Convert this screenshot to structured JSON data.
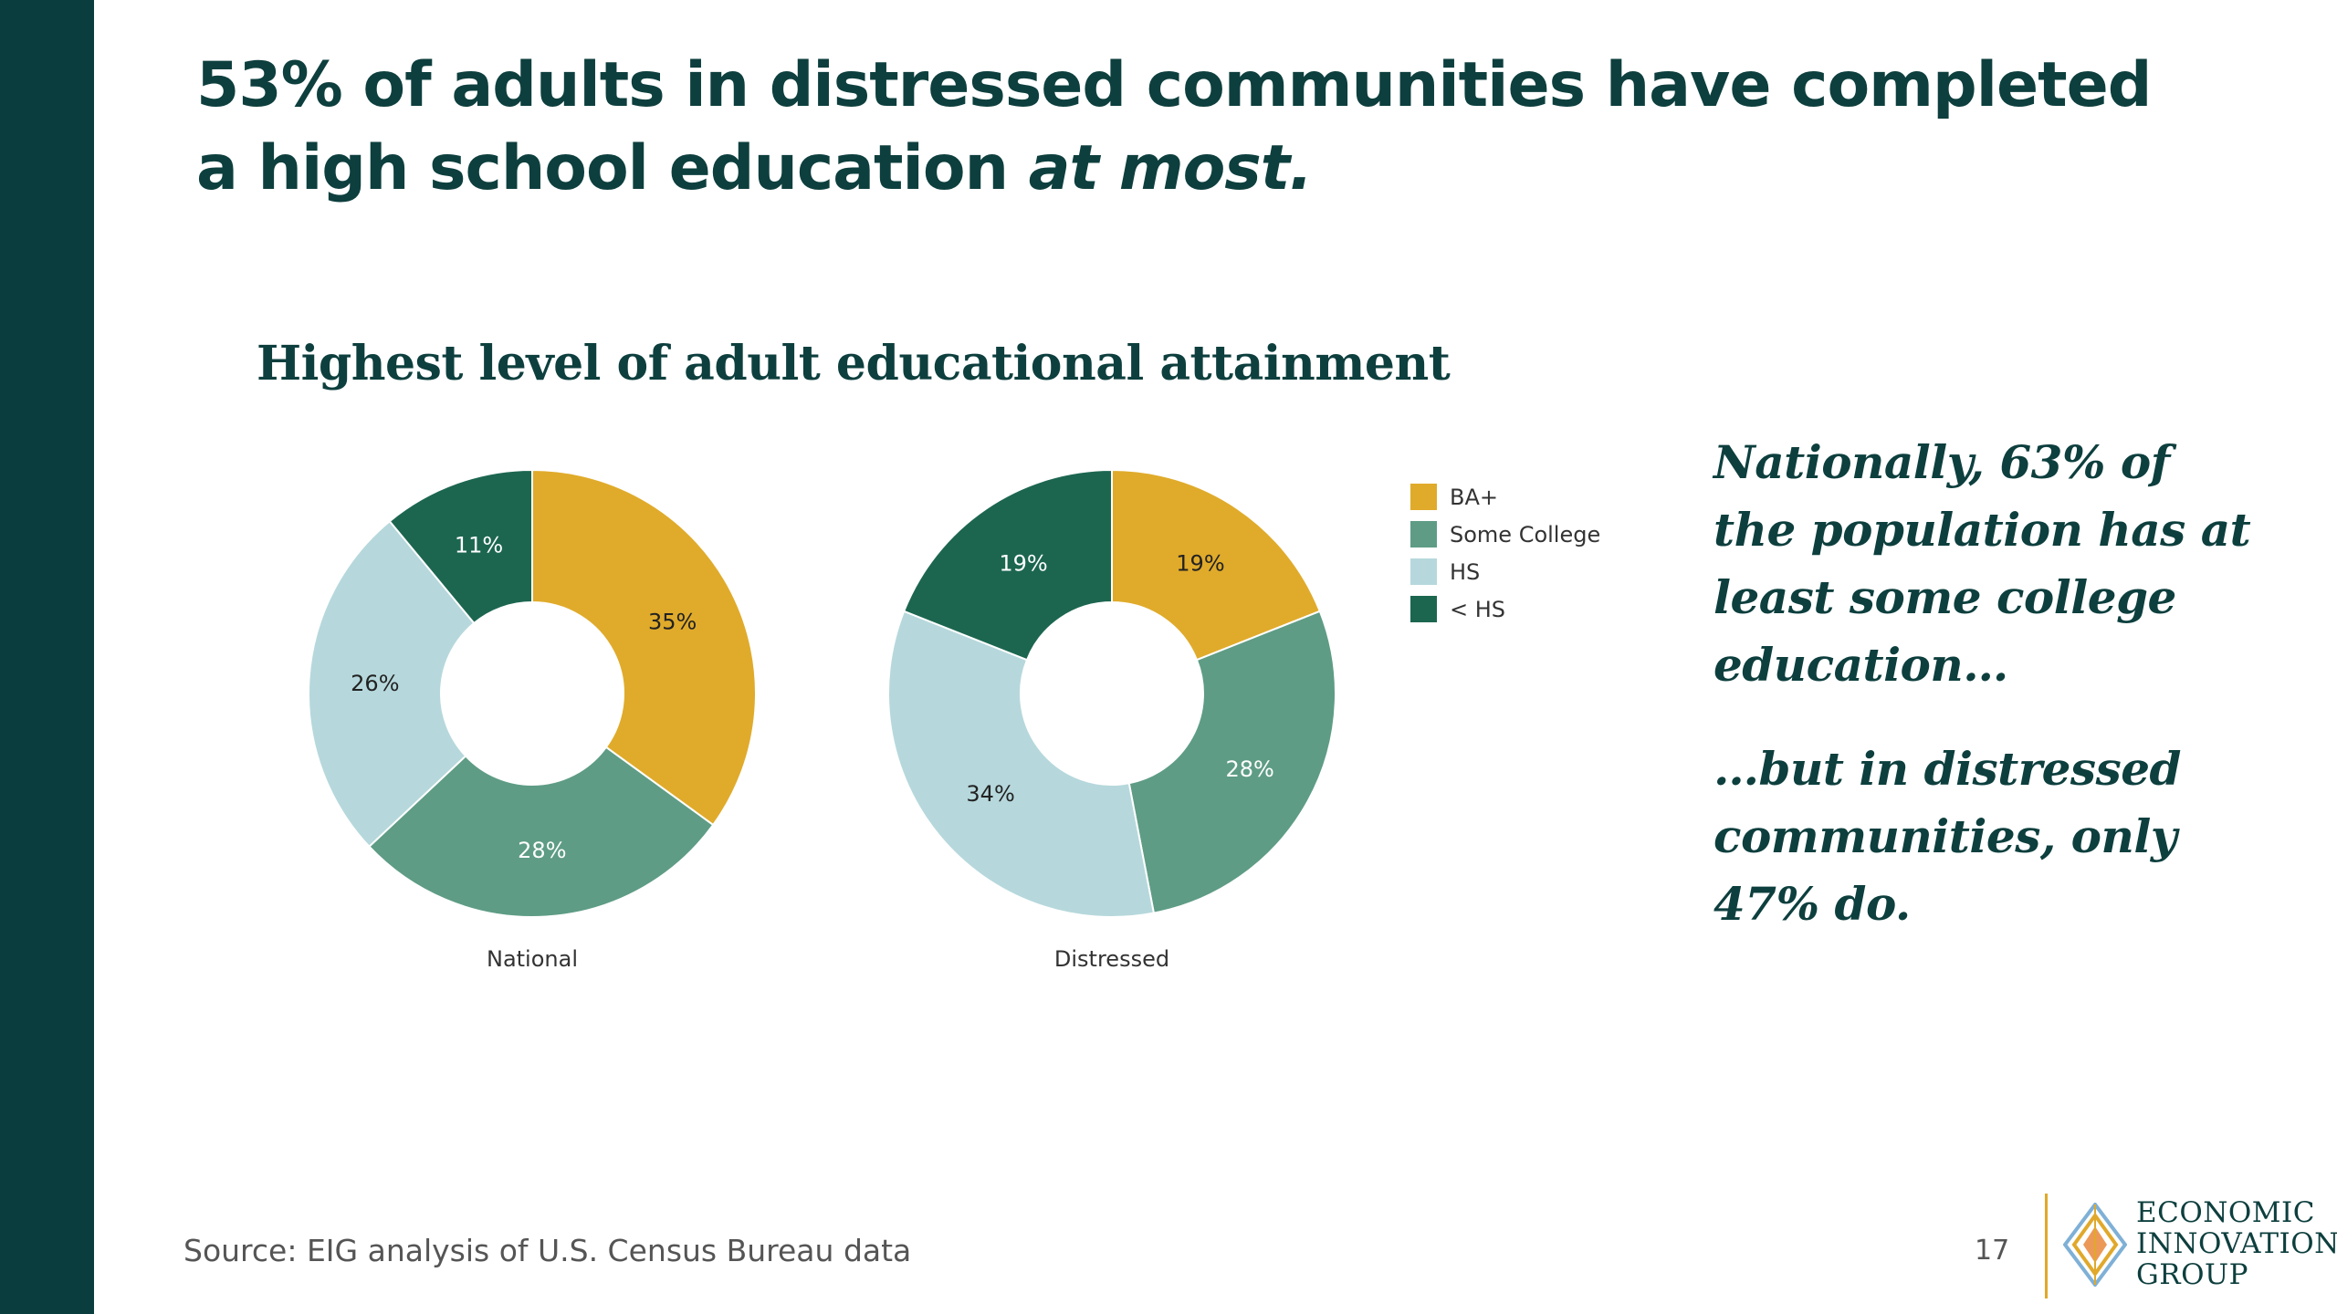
{
  "headline": {
    "main": "53% of adults in distressed communities have completed a high school education ",
    "emphasis": "at most."
  },
  "chart_data": {
    "type": "pie",
    "title": "Highest level of adult educational attainment",
    "categories": [
      "BA+",
      "Some College",
      "HS",
      "< HS"
    ],
    "colors": [
      "#e0ab2b",
      "#5e9c85",
      "#b6d8dc",
      "#1c6650"
    ],
    "label_colors": [
      "#222222",
      "#ffffff",
      "#222222",
      "#ffffff"
    ],
    "series": [
      {
        "name": "National",
        "values": [
          35,
          28,
          26,
          11
        ]
      },
      {
        "name": "Distressed",
        "values": [
          19,
          28,
          34,
          19
        ]
      }
    ],
    "legend_position": "right",
    "value_suffix": "%"
  },
  "callout": {
    "line1": "Nationally, 63% of the population has at least some college education…",
    "line2": "…but in distressed communities, only 47% do."
  },
  "footer": {
    "source": "Source: EIG analysis of U.S. Census Bureau data",
    "page_number": "17"
  },
  "logo": {
    "line1": "ECONOMIC",
    "line2": "INNOVATION",
    "line3": "GROUP"
  }
}
